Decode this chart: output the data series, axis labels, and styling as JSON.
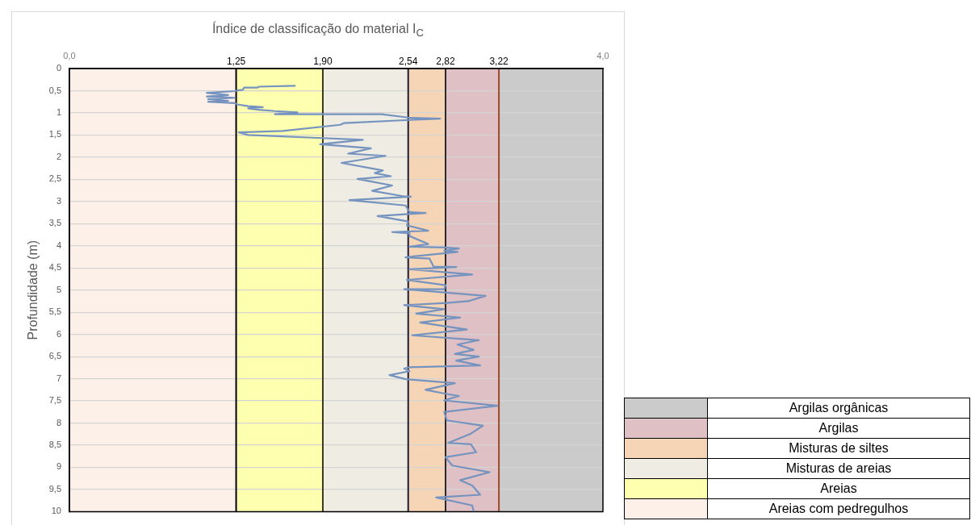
{
  "chart_data": {
    "type": "line",
    "title": "Índice de classificação do material I$_{C}$",
    "ylabel": "Profundidade (m)",
    "series": [
      {
        "color": "#7593bf",
        "x": [
          1.69,
          1.42,
          1.41,
          1.31,
          1.3,
          1.27,
          1.24,
          1.03,
          1.19,
          1.03,
          1.24,
          1.04,
          1.19,
          1.04,
          1.24,
          1.26,
          1.34,
          1.45,
          1.34,
          1.42,
          1.54,
          1.71,
          1.54,
          2.34,
          2.55,
          2.78,
          2.55,
          2.06,
          2.03,
          1.6,
          1.27,
          1.34,
          1.9,
          2.2,
          1.88,
          2.26,
          2.09,
          2.37,
          2.04,
          2.35,
          2.29,
          2.41,
          2.16,
          2.42,
          2.27,
          2.5,
          2.56,
          2.1,
          2.52,
          2.55,
          2.67,
          2.31,
          2.54,
          2.53,
          2.69,
          2.42,
          2.55,
          2.55,
          2.69,
          2.55,
          2.81,
          2.92,
          2.81,
          2.91,
          2.52,
          2.7,
          2.73,
          2.9,
          2.55,
          3.02,
          2.53,
          2.82,
          2.81,
          2.51,
          3.12,
          2.99,
          2.83,
          2.51,
          2.81,
          2.6,
          2.93,
          2.63,
          2.98,
          2.57,
          3.07,
          2.91,
          3.03,
          2.89,
          3.07,
          2.9,
          3.08,
          2.55,
          2.51,
          2.55,
          2.4,
          2.52,
          2.89,
          2.67,
          2.82,
          2.92,
          2.81,
          3.21,
          2.81,
          2.83,
          3.1,
          3.01,
          2.84,
          3.01,
          3.05,
          2.82,
          2.87,
          3.15,
          2.93,
          3.02,
          3.08,
          2.75,
          3.02,
          3.03
        ],
        "values": [
          0.39,
          0.41,
          0.43,
          0.43,
          0.48,
          0.49,
          0.51,
          0.55,
          0.6,
          0.63,
          0.66,
          0.69,
          0.73,
          0.75,
          0.78,
          0.81,
          0.85,
          0.87,
          0.9,
          0.93,
          0.96,
          0.99,
          1.03,
          1.03,
          1.11,
          1.13,
          1.16,
          1.23,
          1.27,
          1.41,
          1.44,
          1.5,
          1.57,
          1.61,
          1.71,
          1.8,
          1.92,
          1.97,
          2.13,
          2.3,
          2.36,
          2.43,
          2.49,
          2.64,
          2.76,
          2.88,
          2.89,
          2.97,
          3.09,
          3.24,
          3.26,
          3.33,
          3.45,
          3.54,
          3.66,
          3.69,
          3.72,
          3.78,
          3.96,
          4.02,
          4.04,
          4.06,
          4.11,
          4.14,
          4.26,
          4.29,
          4.47,
          4.48,
          4.53,
          4.65,
          4.77,
          4.89,
          4.98,
          4.98,
          5.13,
          5.25,
          5.29,
          5.34,
          5.43,
          5.53,
          5.62,
          5.73,
          5.89,
          6.02,
          6.13,
          6.23,
          6.35,
          6.44,
          6.5,
          6.59,
          6.7,
          6.74,
          6.77,
          6.83,
          6.92,
          7.01,
          7.1,
          7.25,
          7.34,
          7.39,
          7.49,
          7.61,
          7.75,
          7.94,
          8.06,
          8.24,
          8.45,
          8.48,
          8.66,
          8.77,
          8.96,
          9.11,
          9.29,
          9.41,
          9.62,
          9.68,
          9.86,
          9.98
        ]
      }
    ],
    "xlim": [
      0,
      4
    ],
    "xticks": [
      {
        "value": 0,
        "label": "0,0"
      },
      {
        "value": 4,
        "label": "4,0"
      }
    ],
    "ylim": [
      10,
      0
    ],
    "yticks": [
      0,
      {
        "value": 0.5,
        "label": "0,5"
      },
      1,
      {
        "value": 1.5,
        "label": "1,5"
      },
      2,
      {
        "value": 2.5,
        "label": "2,5"
      },
      3,
      {
        "value": 3.5,
        "label": "3,5"
      },
      4,
      {
        "value": 4.5,
        "label": "4,5"
      },
      5,
      {
        "value": 5.5,
        "label": "5,5"
      },
      6,
      {
        "value": 6.5,
        "label": "6,5"
      },
      7,
      {
        "value": 7.5,
        "label": "7,5"
      },
      8,
      {
        "value": 8.5,
        "label": "8,5"
      },
      9,
      {
        "value": 9.5,
        "label": "9,5"
      },
      10
    ],
    "grid": "y",
    "bands": [
      {
        "axis": "x",
        "from": 0,
        "to": 1.25,
        "color": "#fdf0e8"
      },
      {
        "axis": "x",
        "from": 1.25,
        "to": 1.9,
        "color": "#ffffb0"
      },
      {
        "axis": "x",
        "from": 1.9,
        "to": 2.54,
        "color": "#eeece3"
      },
      {
        "axis": "x",
        "from": 2.54,
        "to": 2.82,
        "color": "#f6d4b6"
      },
      {
        "axis": "x",
        "from": 2.82,
        "to": 3.22,
        "color": "#dfc0c4"
      },
      {
        "axis": "x",
        "from": 3.22,
        "to": 4,
        "color": "#cbcbcb"
      }
    ],
    "ref_lines": [
      {
        "axis": "x",
        "value": 1.25,
        "label": "1,25",
        "color": "#000000"
      },
      {
        "axis": "x",
        "value": 1.9,
        "label": "1,90",
        "color": "#3a3a1a"
      },
      {
        "axis": "x",
        "value": 2.54,
        "label": "2,54",
        "color": "#1e1a30"
      },
      {
        "axis": "x",
        "value": 2.82,
        "label": "2,82",
        "color": "#2a2a2a"
      },
      {
        "axis": "x",
        "value": 3.22,
        "label": "3,22",
        "color": "#a0482a"
      }
    ],
    "annotations": [
      "Argilas orgânicas",
      "Argilas",
      "Misturas de siltes",
      "Misturas de areias",
      "Areias",
      "Areias com pedregulhos"
    ]
  }
}
